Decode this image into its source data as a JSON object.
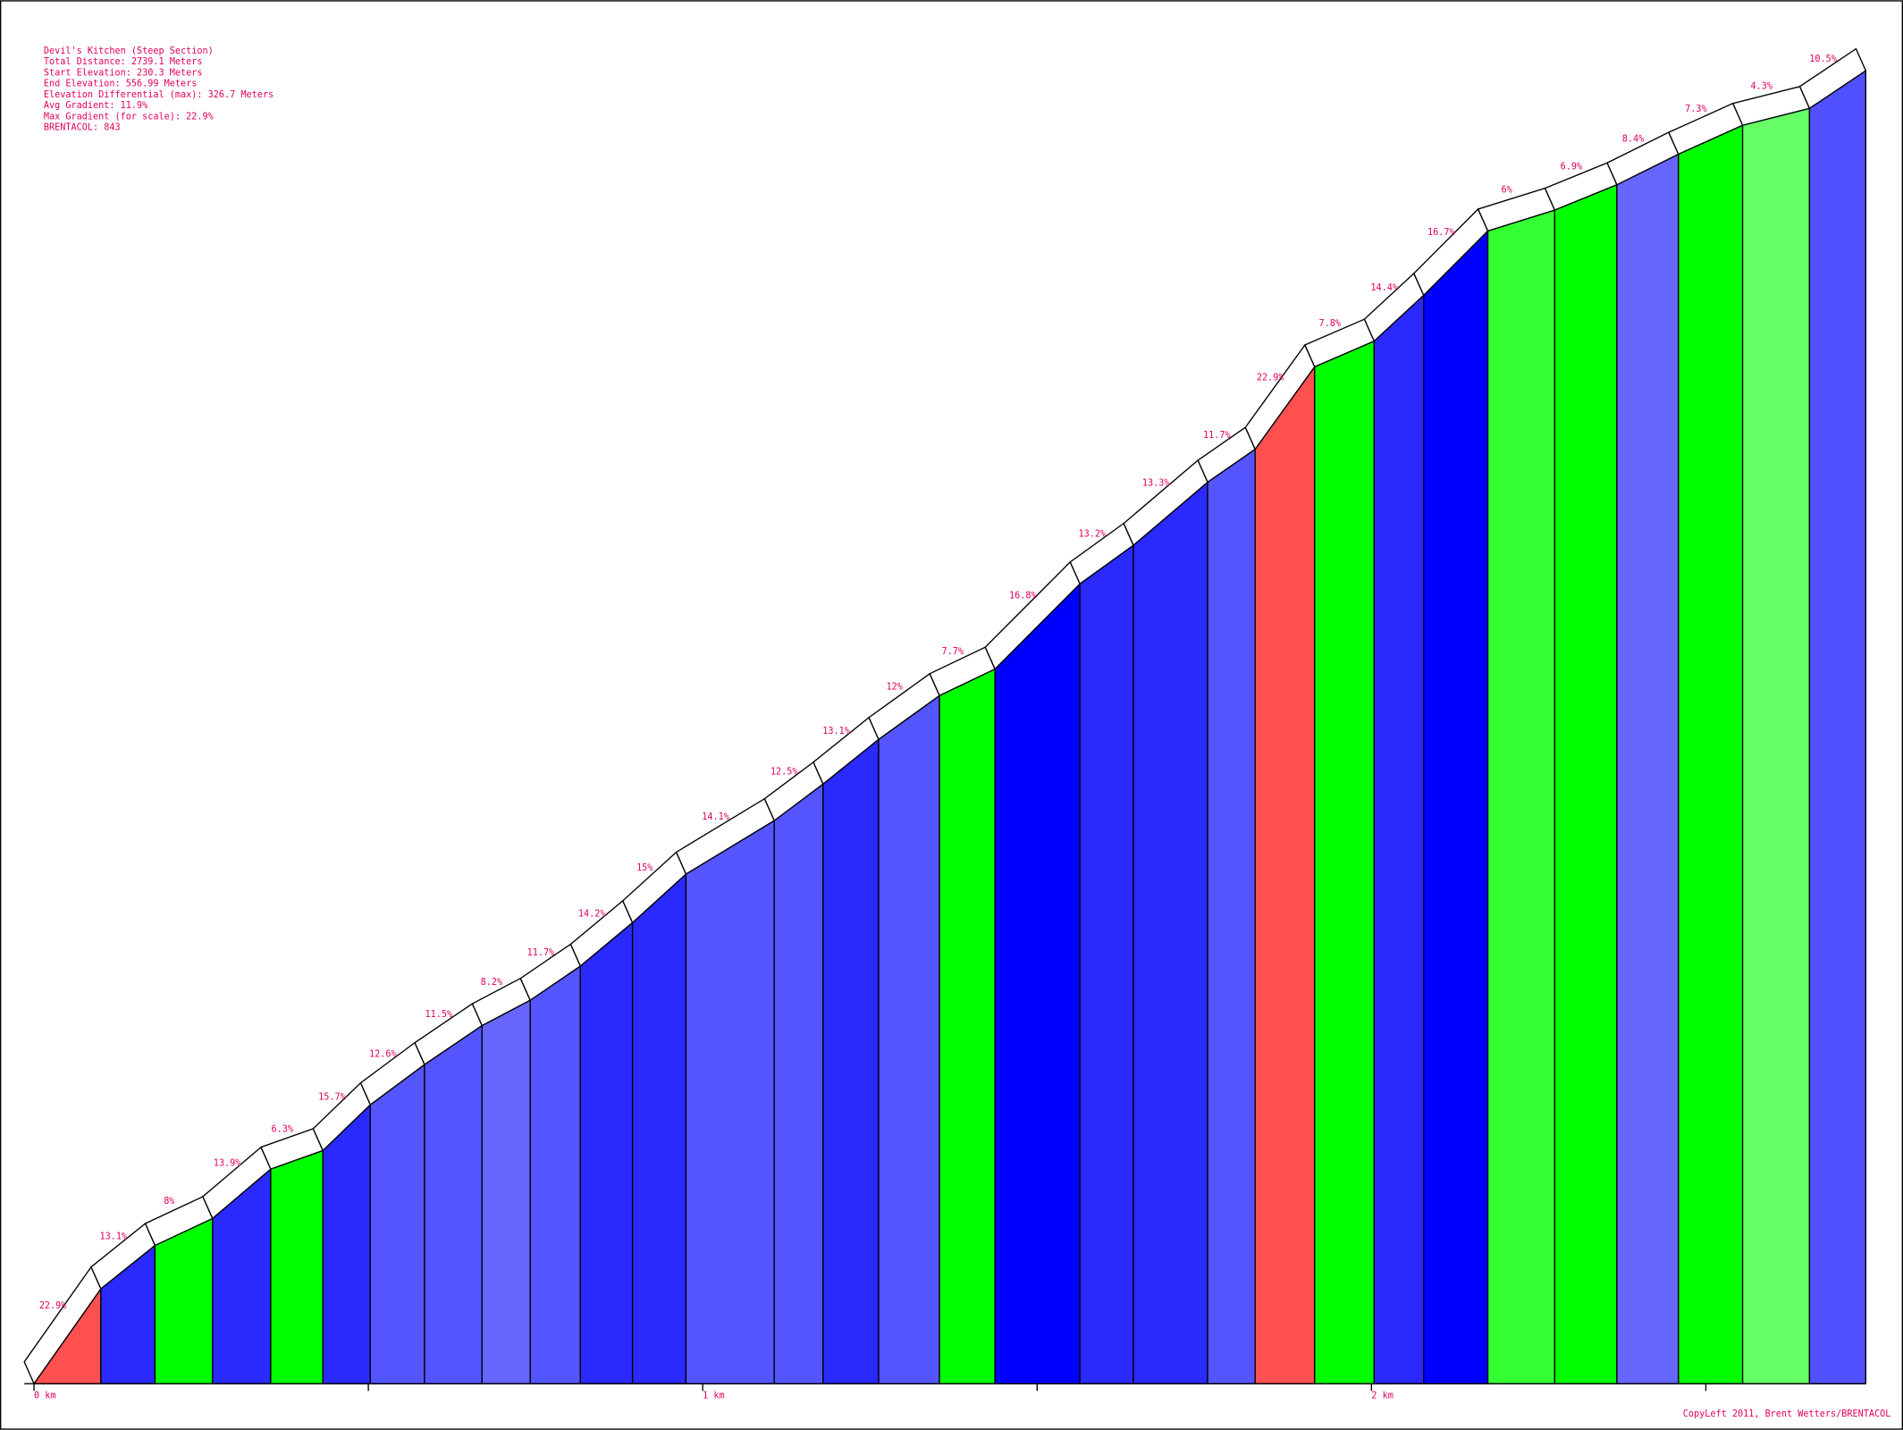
{
  "chart_data": {
    "type": "profile",
    "stats": [
      "Devil's Kitchen (Steep Section)",
      "Total Distance: 2739.1 Meters",
      "Start Elevation: 230.3 Meters",
      "End Elevation: 556.99 Meters",
      "Elevation Differential (max): 326.7 Meters",
      "Avg Gradient: 11.9%",
      "Max Gradient (for scale): 22.9%",
      "BRENTACOL: 843"
    ],
    "x": [
      0,
      0.1,
      0.181,
      0.267,
      0.354,
      0.432,
      0.503,
      0.584,
      0.67,
      0.742,
      0.817,
      0.895,
      0.975,
      1.107,
      1.18,
      1.263,
      1.354,
      1.437,
      1.564,
      1.644,
      1.755,
      1.826,
      1.915,
      2.004,
      2.078,
      2.174,
      2.274,
      2.367,
      2.459,
      2.555,
      2.655,
      2.7391
    ],
    "values": [
      230.3,
      253.9,
      264.7,
      271.4,
      283.7,
      288.3,
      299.7,
      309.7,
      319.4,
      325.7,
      334.2,
      345.0,
      357.1,
      370.4,
      379.5,
      390.6,
      401.5,
      408.1,
      429.3,
      438.9,
      454.6,
      462.8,
      483.3,
      489.7,
      501.1,
      517.1,
      522.3,
      528.6,
      536.2,
      543.4,
      547.6,
      556.99
    ],
    "segment_labels": [
      "22.9%",
      "13.1%",
      "8%",
      "13.9%",
      "6.3%",
      "15.7%",
      "12.6%",
      "11.5%",
      "8.2%",
      "11.7%",
      "14.2%",
      "15%",
      "14.1%",
      "12.5%",
      "13.1%",
      "12%",
      "7.7%",
      "16.8%",
      "13.2%",
      "13.3%",
      "11.7%",
      "22.9%",
      "7.8%",
      "14.4%",
      "16.7%",
      "6%",
      "6.9%",
      "8.4%",
      "7.3%",
      "4.3%",
      "10.5%"
    ],
    "segment_colors": [
      "#ff5050",
      "#2a2aff",
      "#00ff00",
      "#2a2aff",
      "#00ff00",
      "#2a2aff",
      "#5555ff",
      "#5555ff",
      "#6666ff",
      "#5555ff",
      "#2a2aff",
      "#2a2aff",
      "#5555ff",
      "#5555ff",
      "#2a2aff",
      "#5555ff",
      "#00ff00",
      "#0000ff",
      "#2a2aff",
      "#2a2aff",
      "#5555ff",
      "#ff5050",
      "#00ff00",
      "#2a2aff",
      "#0000ff",
      "#33ff33",
      "#00ff00",
      "#6666ff",
      "#00ff00",
      "#66ff66",
      "#5050ff"
    ],
    "xlim": [
      0,
      2.7391
    ],
    "ylim": [
      230.3,
      556.99
    ],
    "xticks": [
      {
        "value": 0,
        "label": "0 km"
      },
      {
        "value": 1,
        "label": "1 km"
      },
      {
        "value": 2,
        "label": "2 km"
      }
    ],
    "minor_xticks": [
      0.5,
      1.5,
      2.5
    ],
    "footer": "CopyLeft 2011, Brent Wetters/BRENTACOL"
  }
}
